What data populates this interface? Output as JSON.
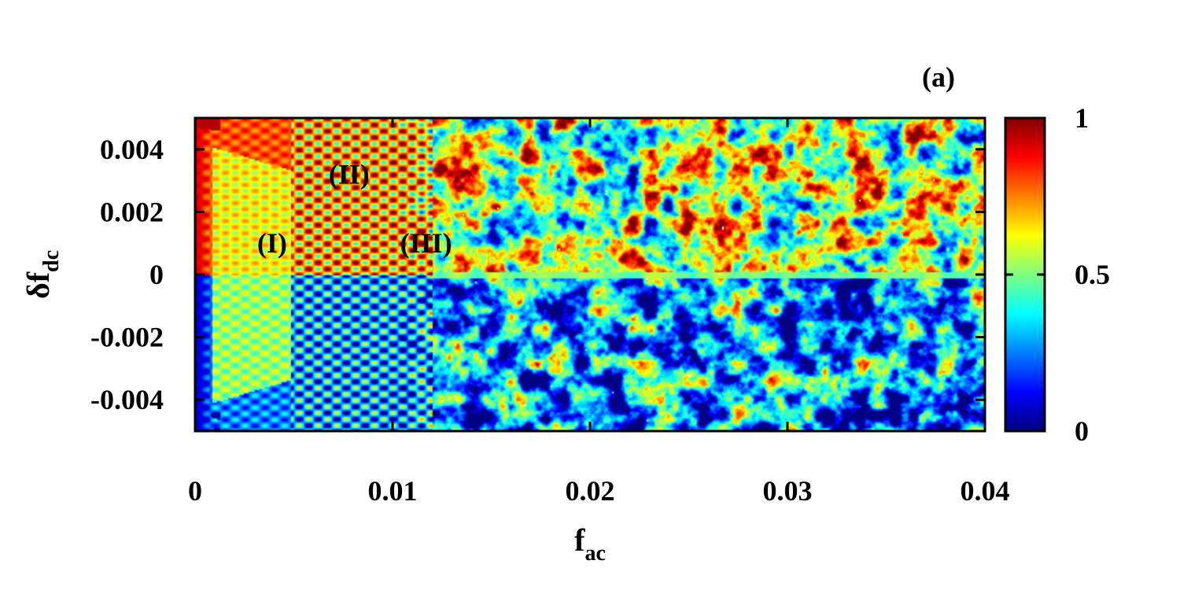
{
  "panel_label": "(a)",
  "chart_data": {
    "type": "heatmap",
    "xlabel": {
      "base": "f",
      "sub": "ac"
    },
    "ylabel": {
      "base": "δf",
      "sub": "dc"
    },
    "xlim": [
      0,
      0.04
    ],
    "ylim": [
      -0.005,
      0.005
    ],
    "x_ticks": [
      {
        "value": 0,
        "label": "0"
      },
      {
        "value": 0.01,
        "label": "0.01"
      },
      {
        "value": 0.02,
        "label": "0.02"
      },
      {
        "value": 0.03,
        "label": "0.03"
      },
      {
        "value": 0.04,
        "label": "0.04"
      }
    ],
    "y_ticks": [
      {
        "value": 0.004,
        "label": "0.004"
      },
      {
        "value": 0.002,
        "label": "0.002"
      },
      {
        "value": 0,
        "label": "0"
      },
      {
        "value": -0.002,
        "label": "-0.002"
      },
      {
        "value": -0.004,
        "label": "-0.004"
      }
    ],
    "colorbar": {
      "range": [
        0,
        1
      ],
      "ticks": [
        {
          "value": 1,
          "label": "1"
        },
        {
          "value": 0.5,
          "label": "0.5"
        },
        {
          "value": 0,
          "label": "0"
        }
      ],
      "colormap": "jet",
      "colors": [
        "#00007f",
        "#0000ff",
        "#007fff",
        "#00ffff",
        "#7fff7f",
        "#ffff00",
        "#ff7f00",
        "#ff0000",
        "#7f0000"
      ]
    },
    "region_labels": [
      {
        "text": "(I)",
        "x": 0.0039,
        "y": 0.001
      },
      {
        "text": "(II)",
        "x": 0.0078,
        "y": 0.0032
      },
      {
        "text": "(III)",
        "x": 0.0117,
        "y": 0.001
      }
    ],
    "grid": false
  }
}
